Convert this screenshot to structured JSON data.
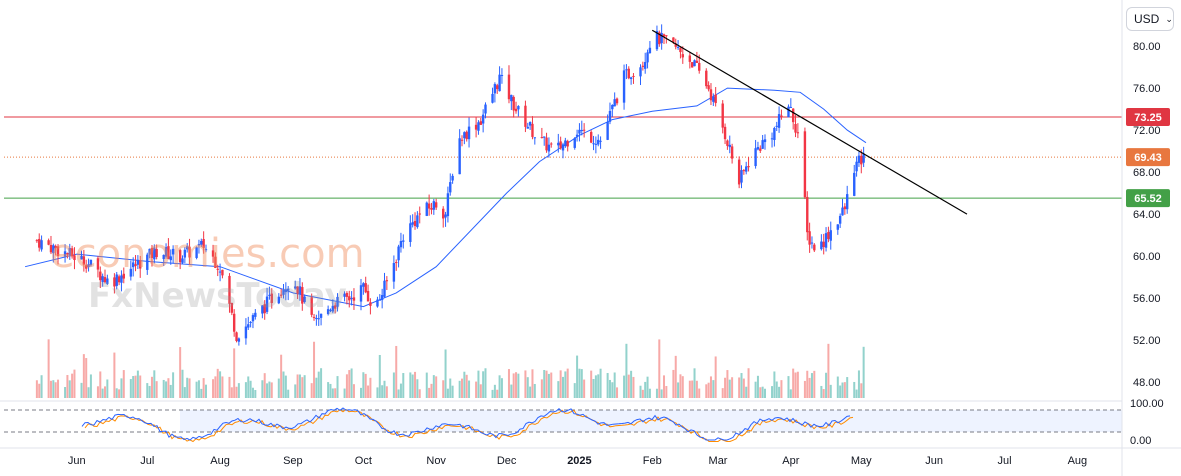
{
  "currency": {
    "label": "USD",
    "icon": "chevron-down-icon"
  },
  "watermark": {
    "line1": "economies.com",
    "line2": "FxNewsToday"
  },
  "colors": {
    "up": "#2962ff",
    "down": "#f23645",
    "ma": "#2962ff",
    "trend": "#000000",
    "resistance": "#e03642",
    "support": "#43a047",
    "current": "#e8773f",
    "stoch_k": "#2962ff",
    "stoch_d": "#ff8c00"
  },
  "chart_data": {
    "type": "candlestick",
    "x_axis": {
      "labels": [
        "Jun",
        "Jul",
        "Aug",
        "Sep",
        "Oct",
        "Nov",
        "Dec",
        "2025",
        "Feb",
        "Mar",
        "Apr",
        "May",
        "Jun",
        "Jul",
        "Aug"
      ]
    },
    "y_axis": {
      "ticks": [
        "80.00",
        "76.00",
        "72.00",
        "68.00",
        "64.00",
        "60.00",
        "56.00",
        "52.00",
        "48.00"
      ],
      "range": [
        46.5,
        84
      ]
    },
    "horizontal_levels": [
      {
        "label": "73.25",
        "value": 73.25,
        "style": "solid",
        "role": "resistance"
      },
      {
        "label": "69.43",
        "value": 69.43,
        "style": "dotted",
        "role": "current"
      },
      {
        "label": "65.52",
        "value": 65.52,
        "style": "solid",
        "role": "support"
      }
    ],
    "trendline": {
      "from": {
        "x": "2025-02-01",
        "y": 81.5
      },
      "to": {
        "x": "2025-06-15",
        "y": 64.0
      }
    },
    "close_path": [
      [
        "2024-05-15",
        61.5
      ],
      [
        "2024-05-25",
        60.5
      ],
      [
        "2024-06-05",
        59.5
      ],
      [
        "2024-06-15",
        57.5
      ],
      [
        "2024-06-25",
        59.0
      ],
      [
        "2024-07-05",
        60.5
      ],
      [
        "2024-07-15",
        60.0
      ],
      [
        "2024-07-25",
        61.0
      ],
      [
        "2024-08-01",
        59.0
      ],
      [
        "2024-08-08",
        52.5
      ],
      [
        "2024-08-15",
        54.0
      ],
      [
        "2024-08-25",
        56.5
      ],
      [
        "2024-09-01",
        58.0
      ],
      [
        "2024-09-10",
        53.5
      ],
      [
        "2024-09-18",
        55.5
      ],
      [
        "2024-09-25",
        56.0
      ],
      [
        "2024-10-01",
        57.0
      ],
      [
        "2024-10-06",
        55.0
      ],
      [
        "2024-10-12",
        58.0
      ],
      [
        "2024-10-18",
        62.0
      ],
      [
        "2024-10-25",
        64.0
      ],
      [
        "2024-11-01",
        65.0
      ],
      [
        "2024-11-05",
        64.0
      ],
      [
        "2024-11-10",
        71.0
      ],
      [
        "2024-11-20",
        73.0
      ],
      [
        "2024-11-28",
        77.0
      ],
      [
        "2024-12-05",
        74.0
      ],
      [
        "2024-12-15",
        71.0
      ],
      [
        "2024-12-22",
        70.0
      ],
      [
        "2024-12-31",
        72.0
      ],
      [
        "2025-01-10",
        71.0
      ],
      [
        "2025-01-20",
        77.0
      ],
      [
        "2025-01-28",
        78.5
      ],
      [
        "2025-02-01",
        81.0
      ],
      [
        "2025-02-10",
        80.0
      ],
      [
        "2025-02-18",
        78.5
      ],
      [
        "2025-02-25",
        76.0
      ],
      [
        "2025-03-01",
        73.5
      ],
      [
        "2025-03-05",
        71.0
      ],
      [
        "2025-03-10",
        67.0
      ],
      [
        "2025-03-15",
        69.5
      ],
      [
        "2025-03-25",
        72.0
      ],
      [
        "2025-03-31",
        74.5
      ],
      [
        "2025-04-05",
        71.0
      ],
      [
        "2025-04-08",
        62.0
      ],
      [
        "2025-04-12",
        60.5
      ],
      [
        "2025-04-18",
        62.5
      ],
      [
        "2025-04-24",
        64.5
      ],
      [
        "2025-04-28",
        68.5
      ],
      [
        "2025-05-03",
        69.43
      ]
    ],
    "ma_path": [
      [
        "2024-05-10",
        59.0
      ],
      [
        "2024-06-01",
        60.2
      ],
      [
        "2024-07-01",
        59.5
      ],
      [
        "2024-08-01",
        59.0
      ],
      [
        "2024-09-01",
        56.5
      ],
      [
        "2024-10-01",
        55.2
      ],
      [
        "2024-10-15",
        56.5
      ],
      [
        "2024-11-01",
        59.0
      ],
      [
        "2024-12-01",
        66.0
      ],
      [
        "2024-12-15",
        69.0
      ],
      [
        "2025-01-01",
        71.5
      ],
      [
        "2025-01-15",
        73.0
      ],
      [
        "2025-02-01",
        73.8
      ],
      [
        "2025-02-20",
        74.3
      ],
      [
        "2025-03-05",
        76.0
      ],
      [
        "2025-03-25",
        75.8
      ],
      [
        "2025-04-05",
        75.6
      ],
      [
        "2025-04-15",
        74.0
      ],
      [
        "2025-04-25",
        72.0
      ],
      [
        "2025-05-03",
        70.8
      ]
    ],
    "stochastic": {
      "ticks": [
        "100.00",
        "0.00"
      ],
      "overbought": 80,
      "oversold": 20
    }
  }
}
